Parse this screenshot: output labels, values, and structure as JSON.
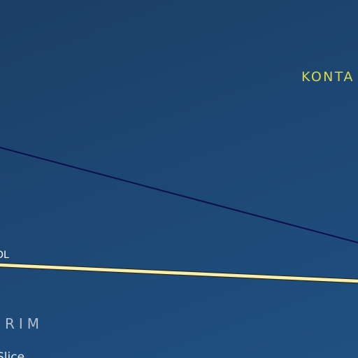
{
  "map": {
    "labels": {
      "region_upper_right": "KONTA",
      "road_left": "OL",
      "region_lower_left": "RIM",
      "place_bottom": "Slice"
    },
    "colors": {
      "water_dark": "#1b3e66",
      "water_light": "#1f5080",
      "boundary_line": "#0b0f4d",
      "road_fill": "#f6efb4",
      "road_casing": "#2a2a1a",
      "region_label_yellow": "#d9d94a",
      "region_label_grey": "#b3bfcc"
    }
  }
}
